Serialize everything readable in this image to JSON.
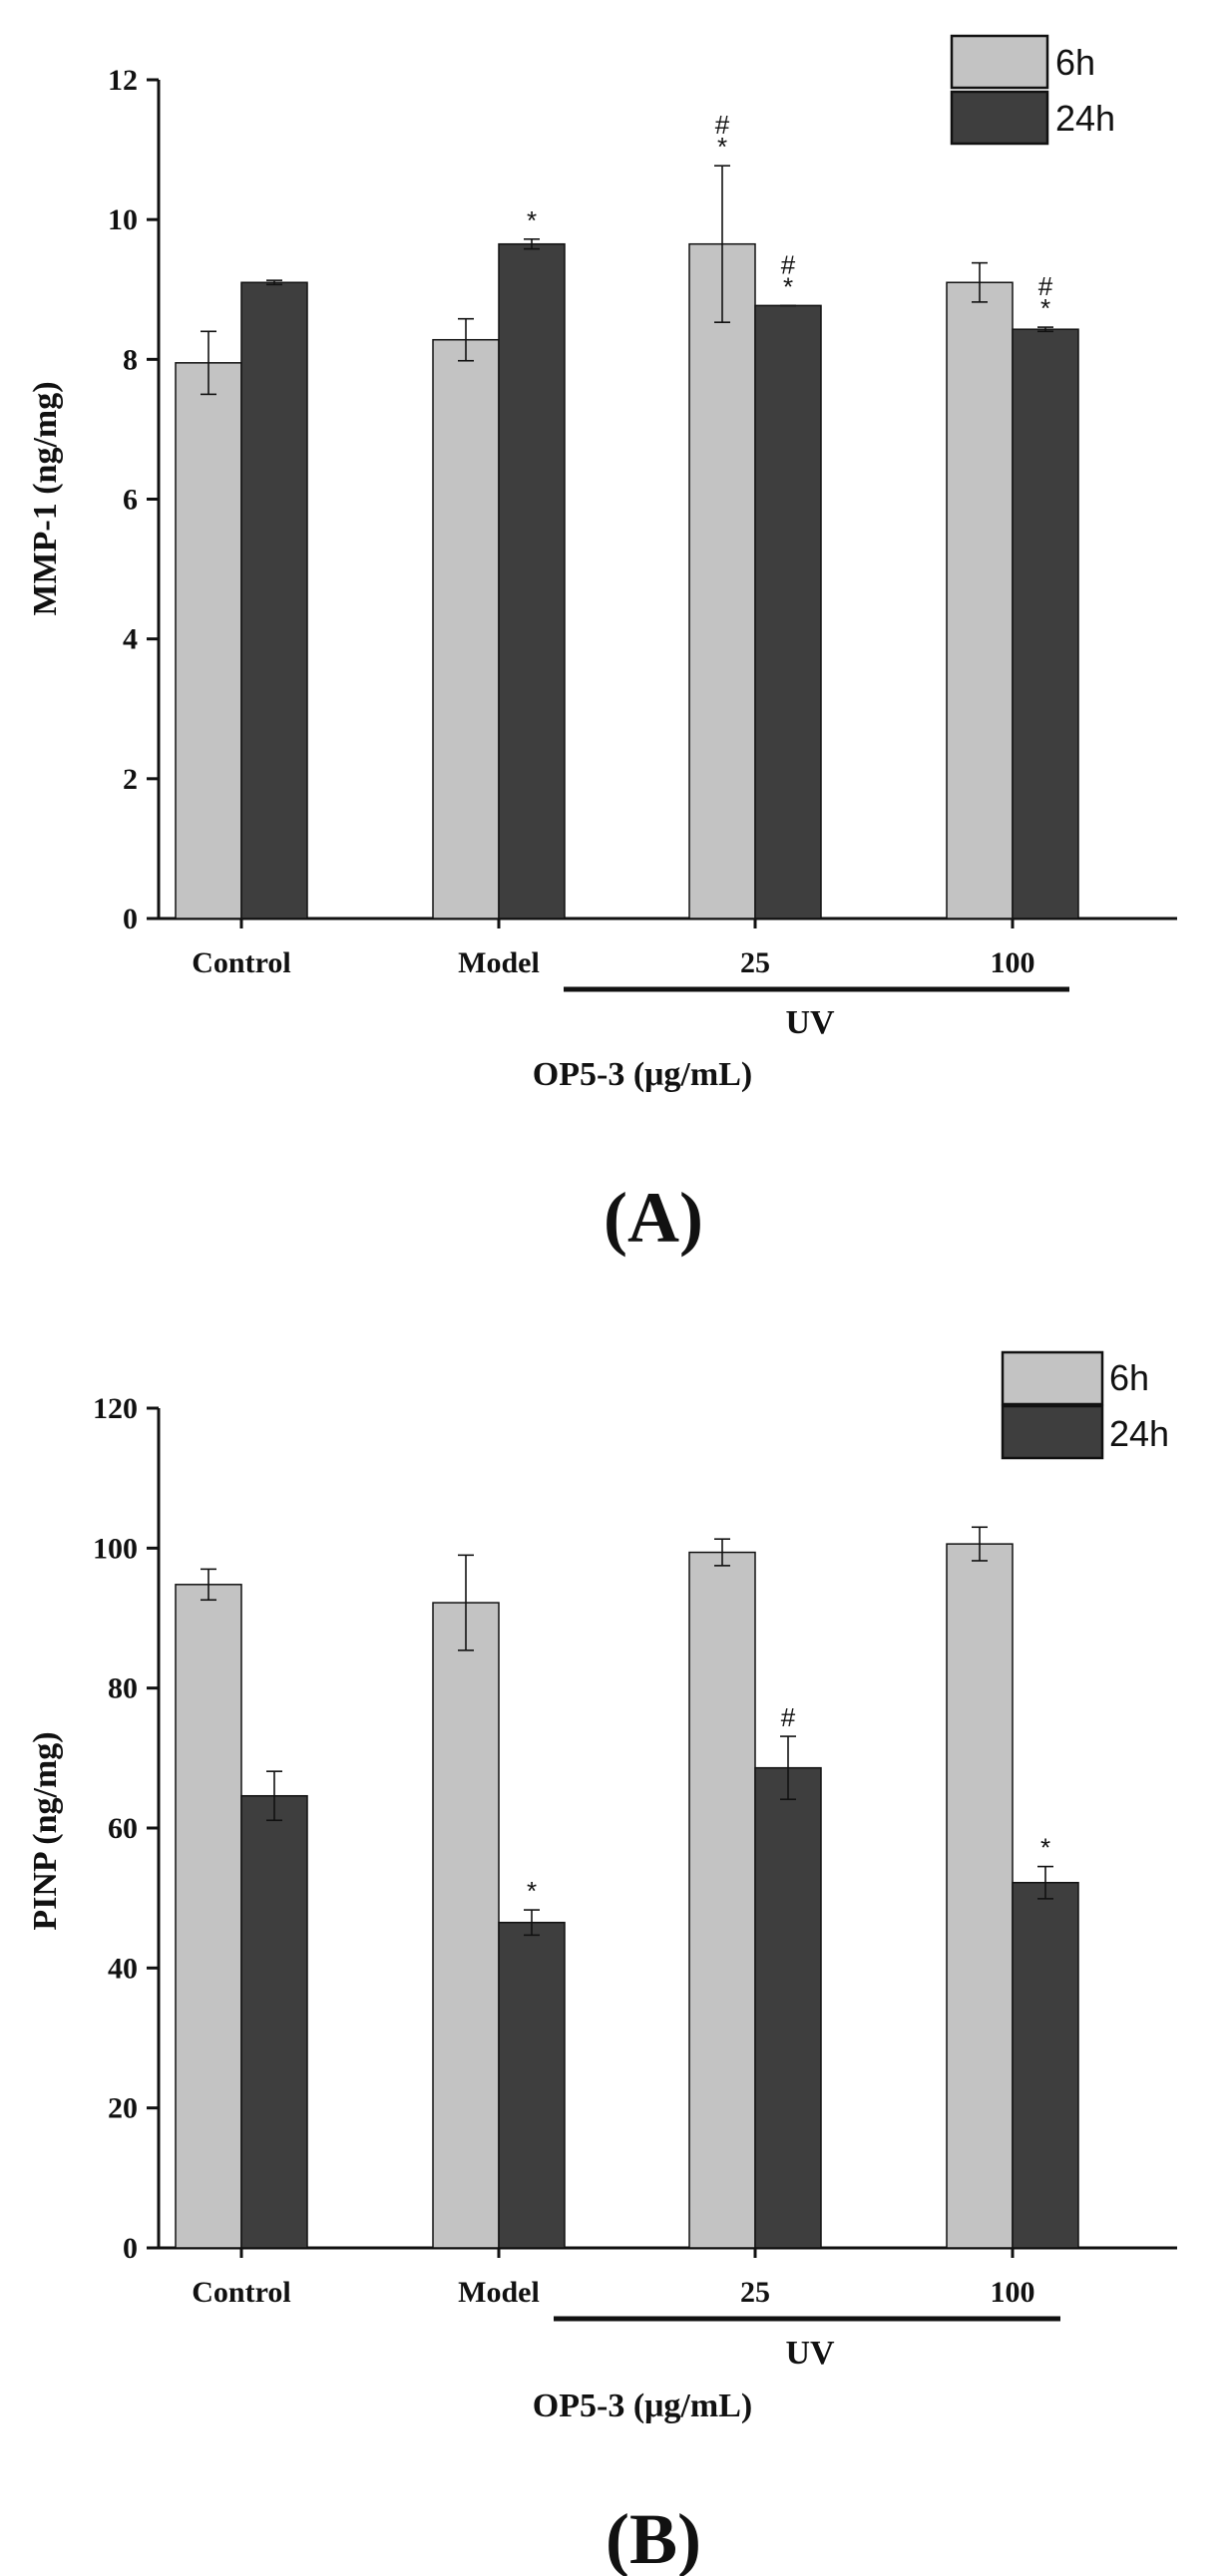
{
  "colors": {
    "light": "#c3c3c3",
    "dark": "#3e3e3e",
    "axis": "#111111"
  },
  "chart_data": [
    {
      "type": "bar",
      "panel_label": "(A)",
      "ylabel": "MMP-1 (ng/mg)",
      "xlabel": "OP5-3 (μg/mL)",
      "group_label": "UV",
      "ylim": [
        0,
        12
      ],
      "yticks": [
        0,
        2,
        4,
        6,
        8,
        10,
        12
      ],
      "categories": [
        "Control",
        "Model",
        "25",
        "100"
      ],
      "legend_position": "top-right",
      "series": [
        {
          "name": "6h",
          "values": [
            7.95,
            8.28,
            9.65,
            9.1
          ],
          "errors": [
            0.45,
            0.3,
            1.12,
            0.28
          ],
          "annotations": [
            "",
            "",
            "*#",
            ""
          ]
        },
        {
          "name": "24h",
          "values": [
            9.1,
            9.65,
            8.77,
            8.43
          ],
          "errors": [
            0.03,
            0.07,
            0.0,
            0.03
          ],
          "annotations": [
            "",
            "*",
            "*#",
            "*#"
          ]
        }
      ]
    },
    {
      "type": "bar",
      "panel_label": "(B)",
      "ylabel": "PINP (ng/mg)",
      "xlabel": "OP5-3 (μg/mL)",
      "group_label": "UV",
      "ylim": [
        0,
        120
      ],
      "yticks": [
        0,
        20,
        40,
        60,
        80,
        100,
        120
      ],
      "categories": [
        "Control",
        "Model",
        "25",
        "100"
      ],
      "legend_position": "top-right",
      "series": [
        {
          "name": "6h",
          "values": [
            94.8,
            92.2,
            99.4,
            100.6
          ],
          "errors": [
            2.2,
            6.8,
            1.9,
            2.4
          ],
          "annotations": [
            "",
            "",
            "",
            ""
          ]
        },
        {
          "name": "24h",
          "values": [
            64.6,
            46.5,
            68.6,
            52.2
          ],
          "errors": [
            3.5,
            1.8,
            4.5,
            2.3
          ],
          "annotations": [
            "",
            "*",
            "#",
            "*"
          ]
        }
      ]
    }
  ]
}
